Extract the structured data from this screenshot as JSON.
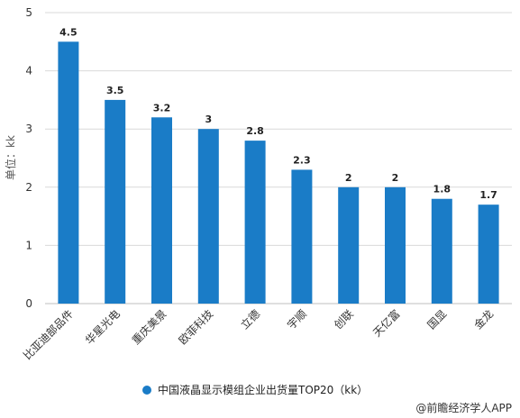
{
  "chart_data": {
    "type": "bar",
    "categories": [
      "比亚迪部品件",
      "华星光电",
      "重庆美景",
      "欧菲科技",
      "立德",
      "宇顺",
      "创联",
      "天亿富",
      "国显",
      "金龙"
    ],
    "series": [
      {
        "name": "中国液晶显示模组企业出货量TOP20（kk）",
        "values": [
          4.5,
          3.5,
          3.2,
          3,
          2.8,
          2.3,
          2,
          2,
          1.8,
          1.7
        ]
      }
    ],
    "data_labels": [
      "4.5",
      "3.5",
      "3.2",
      "3",
      "2.8",
      "2.3",
      "2",
      "2",
      "1.8",
      "1.7"
    ],
    "ylabel": "单位：kk",
    "xlabel": "",
    "ylim": [
      0,
      5
    ],
    "yticks": [
      0,
      1,
      2,
      3,
      4,
      5
    ],
    "grid": true,
    "legend_position": "bottom",
    "bar_color": "#1a7cc7",
    "grid_color": "#d9d9d9"
  },
  "source_text": "@前瞻经济学人APP"
}
